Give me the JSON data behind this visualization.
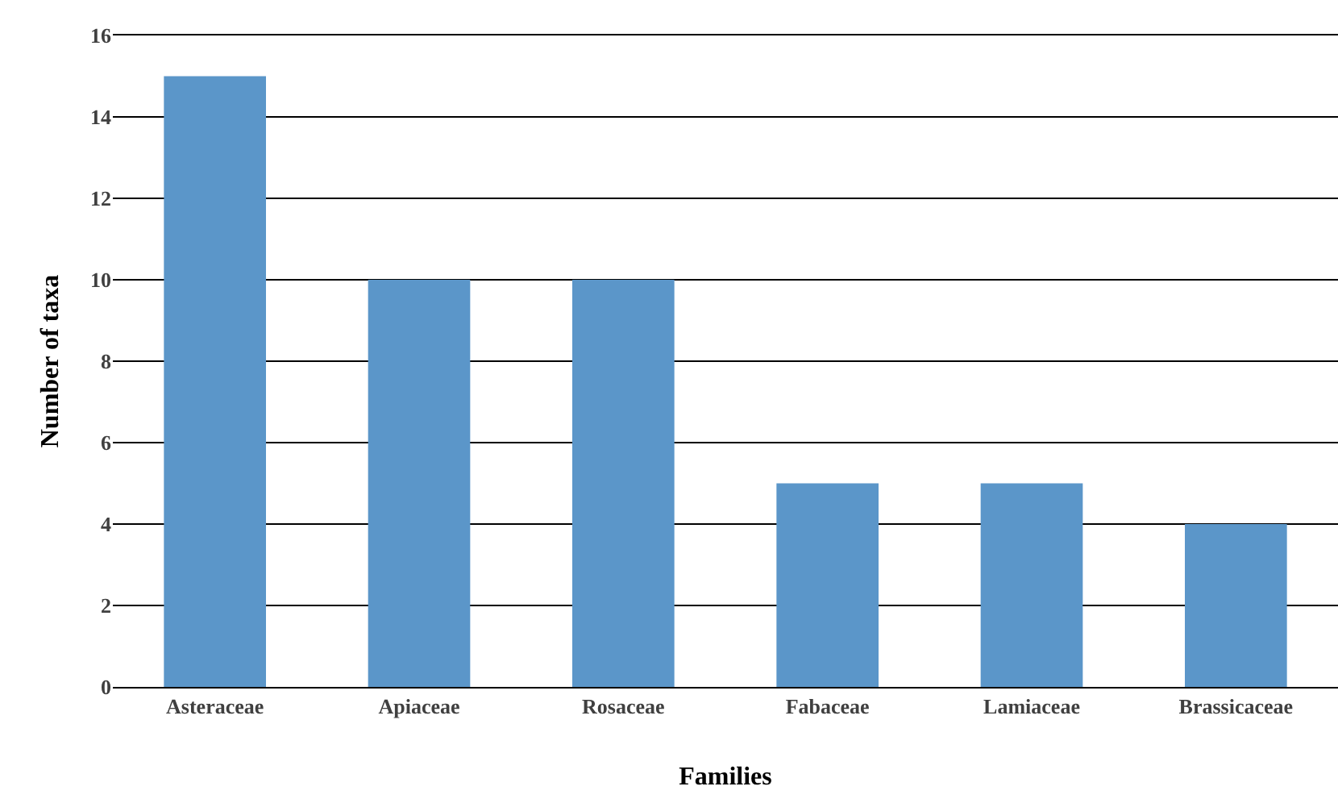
{
  "chart_data": {
    "type": "bar",
    "xlabel": "Families",
    "ylabel": "Number of taxa",
    "categories": [
      "Asteraceae",
      "Apiaceae",
      "Rosaceae",
      "Fabaceae",
      "Lamiaceae",
      "Brassicaceae"
    ],
    "values": [
      15,
      10,
      10,
      5,
      5,
      4
    ],
    "color": "#5b96c9",
    "ylim": [
      0,
      16
    ],
    "yticks": [
      0,
      2,
      4,
      6,
      8,
      10,
      12,
      14,
      16
    ],
    "grid": "y"
  }
}
